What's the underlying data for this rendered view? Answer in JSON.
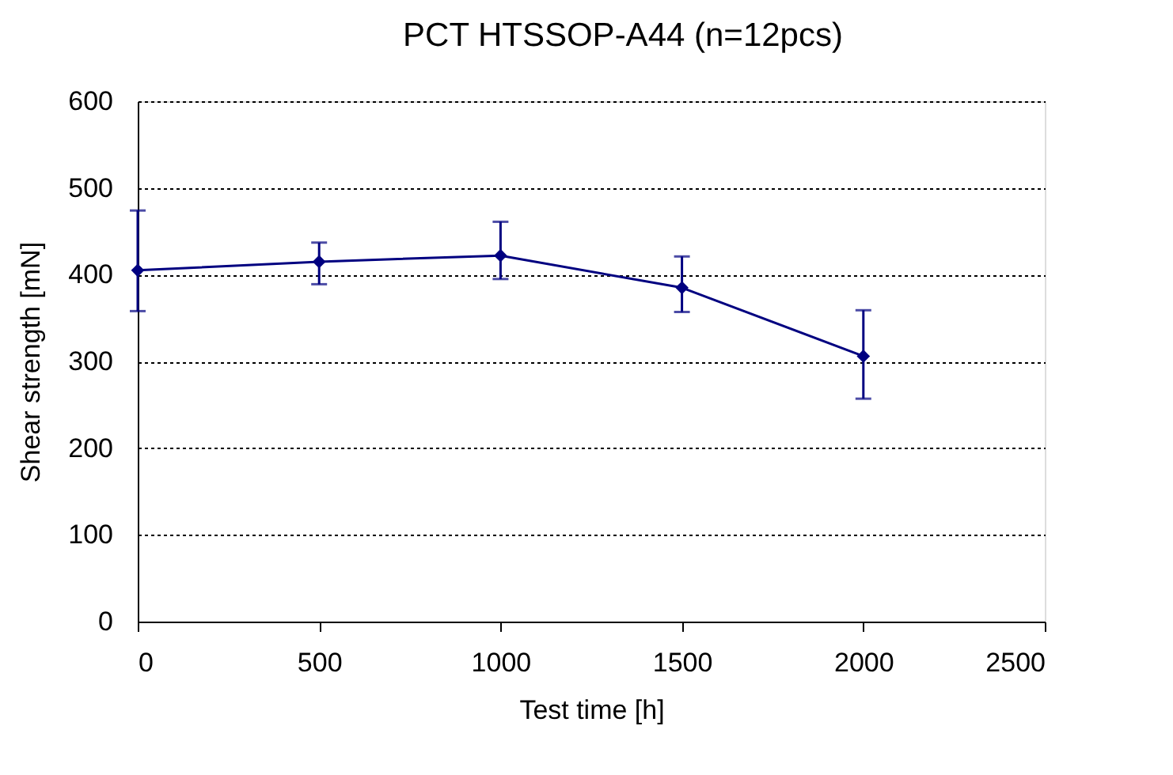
{
  "chart_data": {
    "type": "line",
    "title": "PCT HTSSOP-A44 (n=12pcs)",
    "xlabel": "Test time [h]",
    "ylabel": "Shear strength [mN]",
    "x": [
      0,
      500,
      1000,
      1500,
      2000
    ],
    "series": [
      {
        "color": "#000080",
        "values": [
          405,
          415,
          422,
          385,
          306
        ],
        "errors": [
          [
            358,
            474
          ],
          [
            389,
            437
          ],
          [
            395,
            461
          ],
          [
            357,
            421
          ],
          [
            257,
            359
          ]
        ]
      }
    ],
    "xlim": [
      0,
      2500
    ],
    "xticks": [
      0,
      500,
      1000,
      1500,
      2000,
      2500
    ],
    "ylim": [
      0,
      600
    ],
    "yticks": [
      0,
      100,
      200,
      300,
      400,
      500,
      600
    ],
    "grid": "y",
    "marker": "diamond",
    "line_style": "solid"
  }
}
